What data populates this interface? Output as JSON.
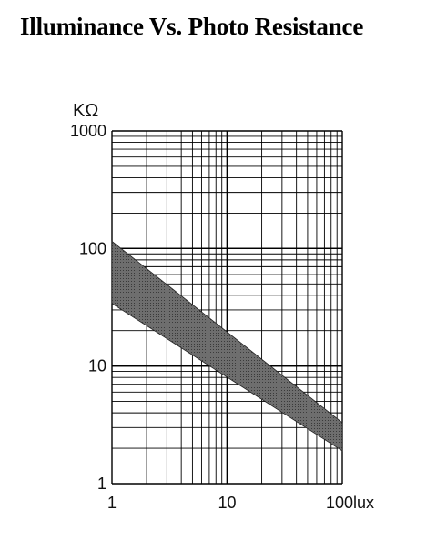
{
  "chart_data": {
    "type": "area",
    "title": "Illuminance Vs. Photo Resistance",
    "x_scale": "log",
    "y_scale": "log",
    "xlim": [
      1,
      100
    ],
    "ylim": [
      1,
      1000
    ],
    "x_ticks": [
      "1",
      "10",
      "100lux"
    ],
    "y_ticks": [
      "1",
      "10",
      "100",
      "1000"
    ],
    "y_unit": "KΩ",
    "grid": true,
    "band": {
      "x": [
        1,
        100
      ],
      "upper": [
        115,
        3.3
      ],
      "lower": [
        34,
        1.9
      ]
    },
    "colors": {
      "band_fill": "#6e6e6e",
      "grid": "#000000"
    }
  }
}
